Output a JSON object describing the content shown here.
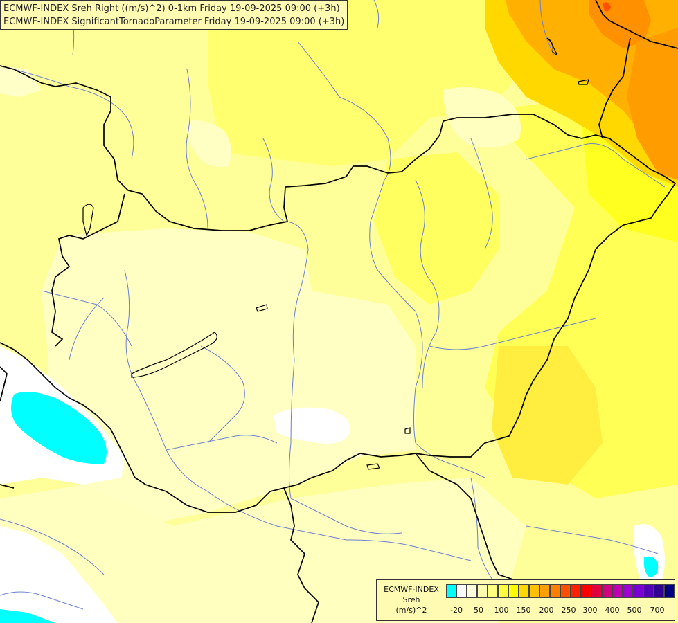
{
  "titles": {
    "line1": "ECMWF-INDEX Sreh Right ((m/s)^2) 0-1km Friday 19-09-2025 09:00 (+3h)",
    "line2": "ECMWF-INDEX SignificantTornadoParameter Friday 19-09-2025 09:00 (+3h)"
  },
  "legend": {
    "line1": "ECMWF-INDEX",
    "line2": "Sreh",
    "line3": "(m/s)^2",
    "colors": [
      "#00ffff",
      "#ffffff",
      "#ffffe0",
      "#ffffb0",
      "#ffff80",
      "#ffff40",
      "#ffff00",
      "#ffd800",
      "#ffc000",
      "#ffa000",
      "#ff8000",
      "#ff5000",
      "#ff2000",
      "#ff0000",
      "#e00040",
      "#d00080",
      "#c000b0",
      "#a000d0",
      "#7800d0",
      "#5000b0",
      "#300090",
      "#000080"
    ],
    "ticks": [
      "-20",
      "50",
      "100",
      "150",
      "200",
      "250",
      "300",
      "400",
      "500",
      "700"
    ]
  }
}
